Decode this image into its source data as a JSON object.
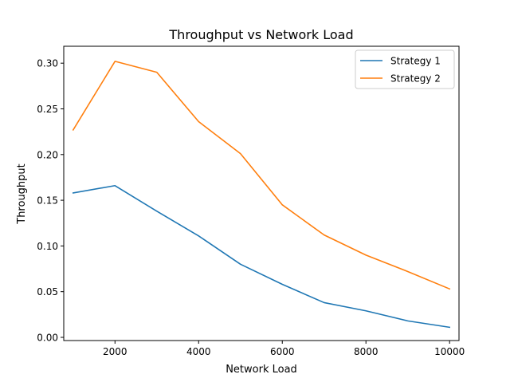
{
  "chart_data": {
    "type": "line",
    "title": "Throughput vs Network Load",
    "xlabel": "Network Load",
    "ylabel": "Throughput",
    "xlim": [
      775,
      10225
    ],
    "ylim": [
      -0.0035,
      0.3185
    ],
    "xticks": [
      2000,
      4000,
      6000,
      8000,
      10000
    ],
    "xtick_labels": [
      "2000",
      "4000",
      "6000",
      "8000",
      "10000"
    ],
    "yticks": [
      0.0,
      0.05,
      0.1,
      0.15,
      0.2,
      0.25,
      0.3
    ],
    "ytick_labels": [
      "0.00",
      "0.05",
      "0.10",
      "0.15",
      "0.20",
      "0.25",
      "0.30"
    ],
    "grid": false,
    "legend_position": "top-right",
    "x": [
      1000,
      2000,
      3000,
      4000,
      5000,
      6000,
      7000,
      8000,
      9000,
      10000
    ],
    "series": [
      {
        "name": "Strategy 1",
        "color": "#1f77b4",
        "values": [
          0.158,
          0.166,
          0.138,
          0.111,
          0.08,
          0.058,
          0.038,
          0.029,
          0.018,
          0.011
        ]
      },
      {
        "name": "Strategy 2",
        "color": "#ff7f0e",
        "values": [
          0.227,
          0.302,
          0.29,
          0.236,
          0.201,
          0.145,
          0.112,
          0.09,
          0.072,
          0.053
        ]
      }
    ]
  }
}
